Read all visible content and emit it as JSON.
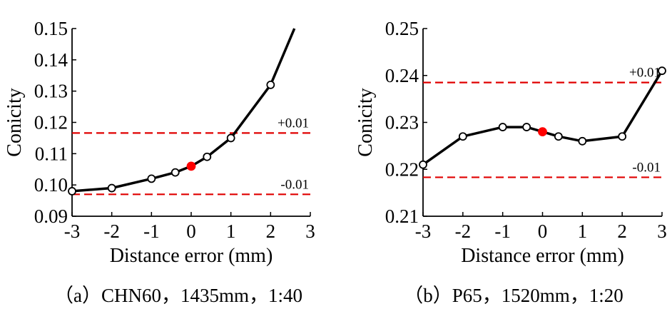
{
  "chart_data": [
    {
      "type": "line",
      "caption": "（a）CHN60，1435mm，1:40",
      "xlabel": "Distance error (mm)",
      "ylabel": "Conicity",
      "xlim": [
        -3,
        3
      ],
      "ylim": [
        0.09,
        0.15
      ],
      "xticks": [
        "-3",
        "-2",
        "-1",
        "0",
        "1",
        "2",
        "3"
      ],
      "yticks": [
        "0.09",
        "0.10",
        "0.11",
        "0.12",
        "0.13",
        "0.14",
        "0.15"
      ],
      "grid": false,
      "series": [
        {
          "x": [
            -3,
            -2,
            -1,
            -0.4,
            0,
            0.4,
            1,
            2,
            2.6
          ],
          "y": [
            0.098,
            0.099,
            0.102,
            0.104,
            0.106,
            0.109,
            0.115,
            0.132,
            0.15
          ],
          "markers": [
            true,
            true,
            true,
            true,
            true,
            true,
            true,
            true,
            false
          ],
          "highlight_x": 0
        }
      ],
      "reference_lines": [
        {
          "y": 0.1166,
          "label": "+0.01"
        },
        {
          "y": 0.097,
          "label": "-0.01"
        }
      ],
      "colors": {
        "line": "#000000",
        "marker_fill": "#ffffff",
        "highlight": "#ff0000",
        "reference": "#e00000"
      }
    },
    {
      "type": "line",
      "caption": "（b）P65，1520mm，1:20",
      "xlabel": "Distance error (mm)",
      "ylabel": "Conicity",
      "xlim": [
        -3,
        3
      ],
      "ylim": [
        0.21,
        0.25
      ],
      "xticks": [
        "-3",
        "-2",
        "-1",
        "0",
        "1",
        "2",
        "3"
      ],
      "yticks": [
        "0.21",
        "0.22",
        "0.23",
        "0.24",
        "0.25"
      ],
      "grid": false,
      "series": [
        {
          "x": [
            -3,
            -2,
            -1,
            -0.4,
            0,
            0.4,
            1,
            2,
            3
          ],
          "y": [
            0.221,
            0.227,
            0.229,
            0.229,
            0.228,
            0.227,
            0.226,
            0.227,
            0.241
          ],
          "markers": [
            true,
            true,
            true,
            true,
            true,
            true,
            true,
            true,
            true
          ],
          "highlight_x": 0
        }
      ],
      "reference_lines": [
        {
          "y": 0.2385,
          "label": "+0.01"
        },
        {
          "y": 0.2183,
          "label": "-0.01"
        }
      ],
      "colors": {
        "line": "#000000",
        "marker_fill": "#ffffff",
        "highlight": "#ff0000",
        "reference": "#e00000"
      }
    }
  ]
}
